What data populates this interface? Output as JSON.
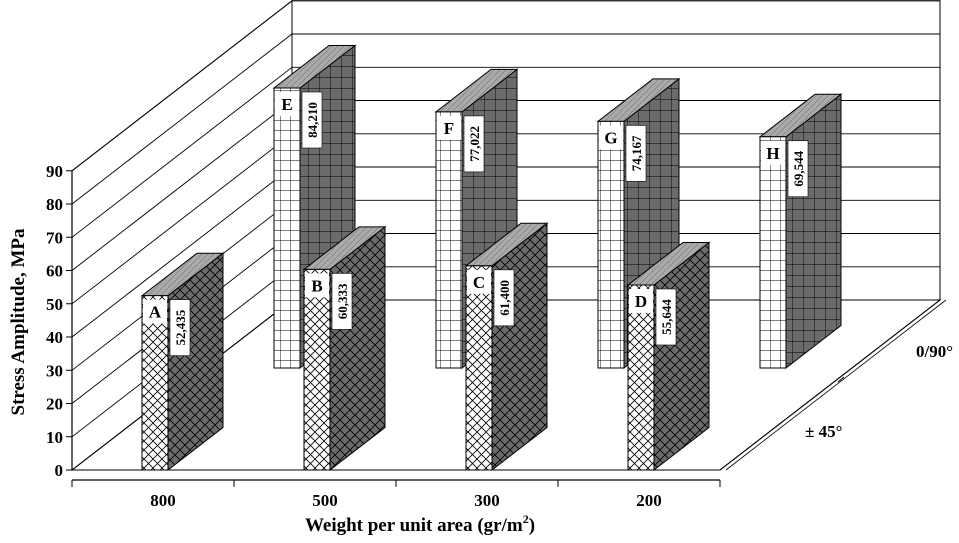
{
  "chart_data": {
    "type": "bar",
    "subtype": "3d-bar",
    "ylabel": "Stress Amplitude, MPa",
    "xlabel": "Weight per unit area (gr/m",
    "xlabel_sup": "2",
    "xlabel_end": ")",
    "ylim": [
      0,
      90
    ],
    "yticks": [
      "0",
      "10",
      "20",
      "30",
      "40",
      "50",
      "60",
      "70",
      "80",
      "90"
    ],
    "categories": [
      "800",
      "500",
      "300",
      "200"
    ],
    "depth_labels": [
      "0/90°",
      "± 45°"
    ],
    "grid": true,
    "series": [
      {
        "name": "0/90°",
        "values": [
          84.21,
          77.022,
          74.167,
          69.544
        ],
        "value_labels": [
          "84,210",
          "77,022",
          "74,167",
          "69,544"
        ],
        "letters": [
          "E",
          "F",
          "G",
          "H"
        ],
        "color": "#6e6e6e",
        "pattern": "grid"
      },
      {
        "name": "± 45°",
        "values": [
          52.435,
          60.333,
          61.4,
          55.644
        ],
        "value_labels": [
          "52,435",
          "60,333",
          "61,400",
          "55,644"
        ],
        "letters": [
          "A",
          "B",
          "C",
          "D"
        ],
        "color": "#6e6e6e",
        "pattern": "crosshatch"
      }
    ]
  }
}
